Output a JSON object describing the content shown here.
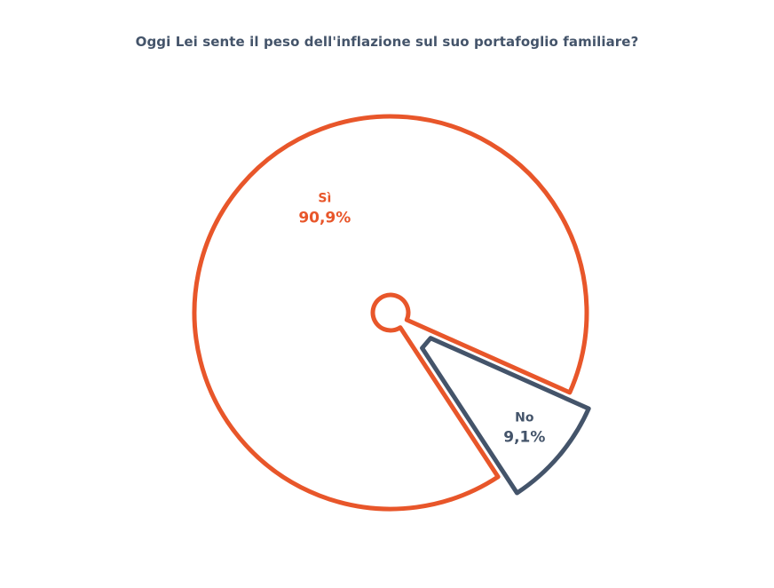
{
  "chart_data": {
    "type": "pie",
    "style": "exploded-outline",
    "title": "Oggi Lei sente il peso dell'inflazione sul suo portafoglio familiare?",
    "slices": [
      {
        "label": "Sì",
        "value": 90.9,
        "value_label": "90,9%",
        "color": "#e8562a"
      },
      {
        "label": "No",
        "value": 9.1,
        "value_label": "9,1%",
        "color": "#44546a"
      }
    ]
  }
}
